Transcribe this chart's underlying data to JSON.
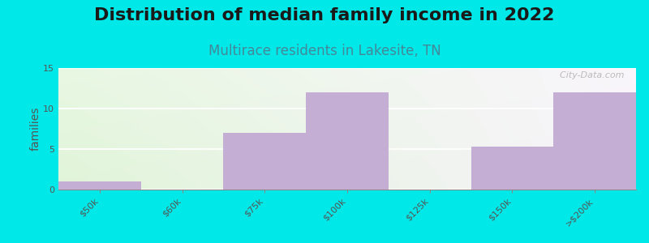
{
  "title": "Distribution of median family income in 2022",
  "subtitle": "Multirace residents in Lakesite, TN",
  "ylabel": "families",
  "categories": [
    "$50k",
    "$60k",
    "$75k",
    "$100k",
    "$125k",
    "$150k",
    ">$200k"
  ],
  "values": [
    1,
    0,
    7,
    12,
    0,
    5.3,
    12
  ],
  "bar_color": "#c4aed4",
  "bar_edge_color": "#b09ac4",
  "background_outer": "#00e8e8",
  "ylim": [
    0,
    15
  ],
  "yticks": [
    0,
    5,
    10,
    15
  ],
  "title_fontsize": 16,
  "subtitle_fontsize": 12,
  "ylabel_fontsize": 10,
  "tick_label_fontsize": 8,
  "watermark": "  City-Data.com"
}
